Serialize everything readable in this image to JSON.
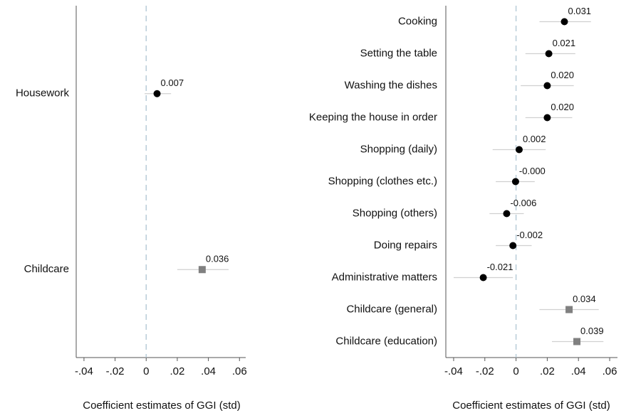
{
  "chart_data": [
    {
      "type": "coefplot",
      "xlabel": "Coefficient estimates of GGI (std)",
      "categories": [
        "Housework",
        "Childcare"
      ],
      "values": [
        0.007,
        0.036
      ],
      "value_labels": [
        "0.007",
        "0.036"
      ],
      "ci_low": [
        -0.001,
        0.02
      ],
      "ci_high": [
        0.016,
        0.053
      ],
      "colors": [
        "#000000",
        "#808080"
      ],
      "markers": [
        "circle",
        "square"
      ],
      "xlim": [
        -0.045,
        0.064
      ],
      "xticks": [
        {
          "value": -0.04,
          "label": "-.04"
        },
        {
          "value": -0.02,
          "label": "-.02"
        },
        0,
        {
          "value": 0.02,
          "label": ".02"
        },
        {
          "value": 0.04,
          "label": ".04"
        },
        {
          "value": 0.06,
          "label": ".06"
        }
      ]
    },
    {
      "type": "coefplot",
      "xlabel": "Coefficient estimates of GGI (std)",
      "categories": [
        "Cooking",
        "Setting the table",
        "Washing the dishes",
        "Keeping the house in order",
        "Shopping (daily)",
        "Shopping (clothes etc.)",
        "Shopping (others)",
        "Doing repairs",
        "Administrative matters",
        "Childcare (general)",
        "Childcare (education)"
      ],
      "values": [
        0.031,
        0.021,
        0.02,
        0.02,
        0.002,
        -0.0003,
        -0.006,
        -0.002,
        -0.021,
        0.034,
        0.039
      ],
      "value_labels": [
        "0.031",
        "0.021",
        "0.020",
        "0.020",
        "0.002",
        "-0.000",
        "-0.006",
        "-0.002",
        "-0.021",
        "0.034",
        "0.039"
      ],
      "ci_low": [
        0.015,
        0.006,
        0.003,
        0.006,
        -0.015,
        -0.013,
        -0.017,
        -0.013,
        -0.04,
        0.015,
        0.023
      ],
      "ci_high": [
        0.048,
        0.038,
        0.037,
        0.036,
        0.019,
        0.012,
        0.005,
        0.01,
        -0.002,
        0.053,
        0.056
      ],
      "colors": [
        "#000000",
        "#000000",
        "#000000",
        "#000000",
        "#000000",
        "#000000",
        "#000000",
        "#000000",
        "#000000",
        "#808080",
        "#808080"
      ],
      "markers": [
        "circle",
        "circle",
        "circle",
        "circle",
        "circle",
        "circle",
        "circle",
        "circle",
        "circle",
        "square",
        "square"
      ],
      "xlim": [
        -0.045,
        0.065
      ],
      "xticks": [
        {
          "value": -0.04,
          "label": "-.04"
        },
        {
          "value": -0.02,
          "label": "-.02"
        },
        0,
        {
          "value": 0.02,
          "label": ".02"
        },
        {
          "value": 0.04,
          "label": ".04"
        },
        {
          "value": 0.06,
          "label": ".06"
        }
      ]
    }
  ]
}
